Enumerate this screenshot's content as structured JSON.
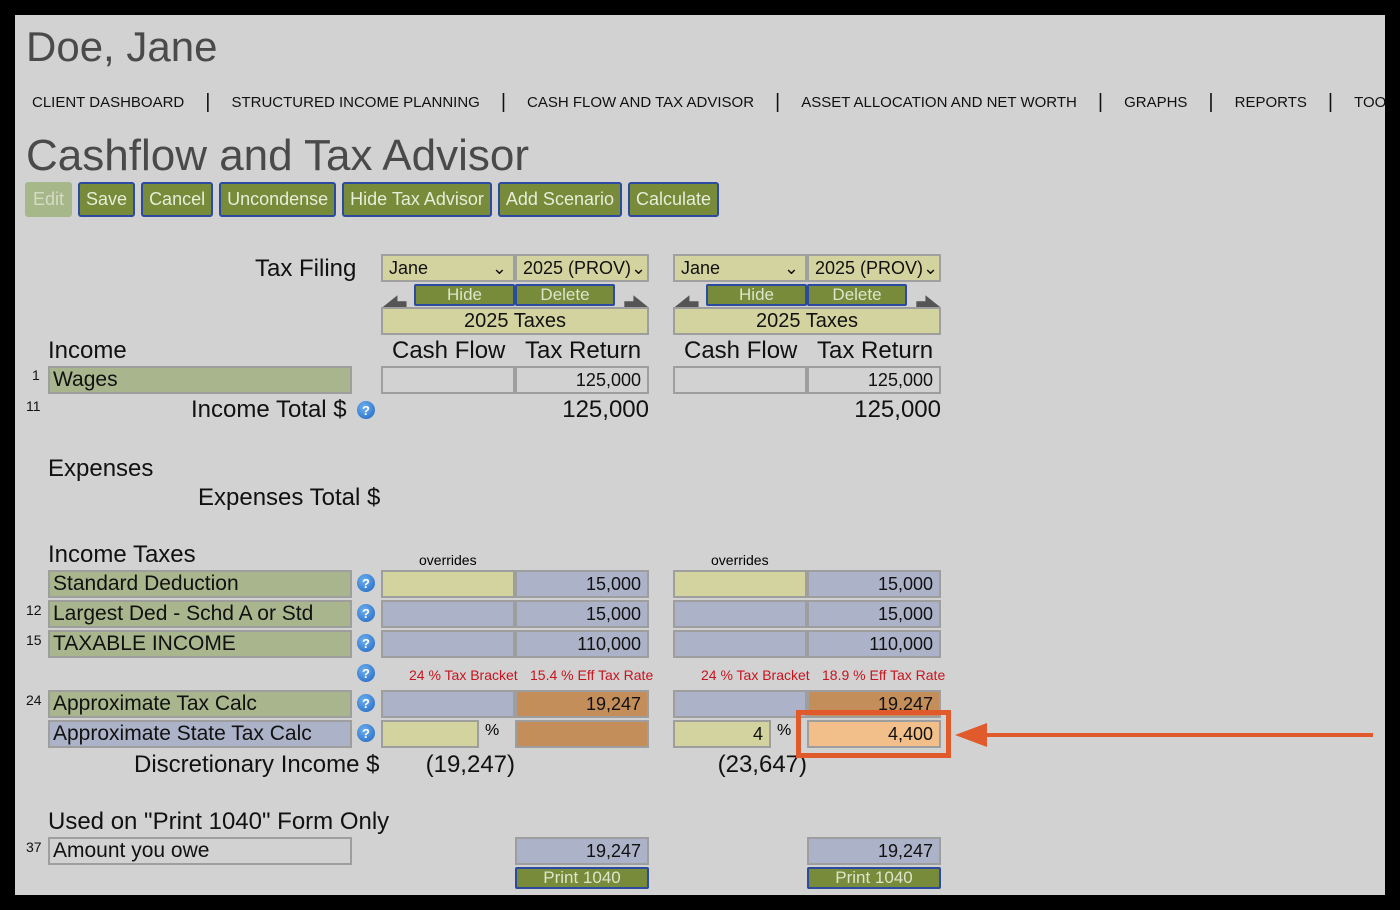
{
  "client_name": "Doe, Jane",
  "nav": [
    "CLIENT DASHBOARD",
    "STRUCTURED INCOME PLANNING",
    "CASH FLOW AND TAX ADVISOR",
    "ASSET ALLOCATION AND NET WORTH",
    "GRAPHS",
    "REPORTS",
    "TOOLS"
  ],
  "page_title": "Cashflow and Tax Advisor",
  "toolbar": [
    "Edit",
    "Save",
    "Cancel",
    "Uncondense",
    "Hide Tax Advisor",
    "Add Scenario",
    "Calculate"
  ],
  "labels": {
    "tax_filing": "Tax Filing",
    "income": "Income",
    "wages": "Wages",
    "wages_line": "1",
    "income_total": "Income Total $",
    "income_total_line": "11",
    "expenses": "Expenses",
    "expenses_total": "Expenses Total $",
    "income_taxes": "Income Taxes",
    "std_ded": "Standard Deduction",
    "largest_ded": "Largest Ded - Schd A or Std",
    "largest_ded_line": "12",
    "taxable": "TAXABLE INCOME",
    "taxable_line": "15",
    "approx_tax": "Approximate Tax Calc",
    "approx_tax_line": "24",
    "state_tax": "Approximate State Tax Calc",
    "discretionary": "Discretionary Income $",
    "print_section": "Used on \"Print 1040\" Form Only",
    "amount_owe": "Amount you owe",
    "amount_owe_line": "37"
  },
  "scenarios": [
    {
      "person": "Jane",
      "year": "2025 (PROV)",
      "hide": "Hide",
      "delete": "Delete",
      "header": "2025 Taxes",
      "col_cash": "Cash Flow",
      "col_tax": "Tax Return",
      "wages_cash": "",
      "wages_tax": "125,000",
      "income_total": "125,000",
      "overrides": "overrides",
      "std_ded": "15,000",
      "largest_ded": "15,000",
      "taxable": "110,000",
      "bracket": "24 % Tax Bracket",
      "eff_rate": "15.4 % Eff Tax Rate",
      "approx_tax": "19,247",
      "state_pct": "",
      "pct_sign": "%",
      "state_tax": "",
      "discretionary": "(19,247)",
      "amount_owe": "19,247",
      "print": "Print 1040"
    },
    {
      "person": "Jane",
      "year": "2025 (PROV)",
      "hide": "Hide",
      "delete": "Delete",
      "header": "2025 Taxes",
      "col_cash": "Cash Flow",
      "col_tax": "Tax Return",
      "wages_cash": "",
      "wages_tax": "125,000",
      "income_total": "125,000",
      "overrides": "overrides",
      "std_ded": "15,000",
      "largest_ded": "15,000",
      "taxable": "110,000",
      "bracket": "24 % Tax Bracket",
      "eff_rate": "18.9 % Eff Tax Rate",
      "approx_tax": "19,247",
      "state_pct": "4",
      "pct_sign": "%",
      "state_tax": "4,400",
      "discretionary": "(23,647)",
      "amount_owe": "19,247",
      "print": "Print 1040"
    }
  ],
  "icons": {
    "help": "help-icon",
    "left": "arrow-left-icon",
    "right": "arrow-right-icon"
  },
  "colors": {
    "highlight": "#e05a2b",
    "button": "#778b3a"
  }
}
